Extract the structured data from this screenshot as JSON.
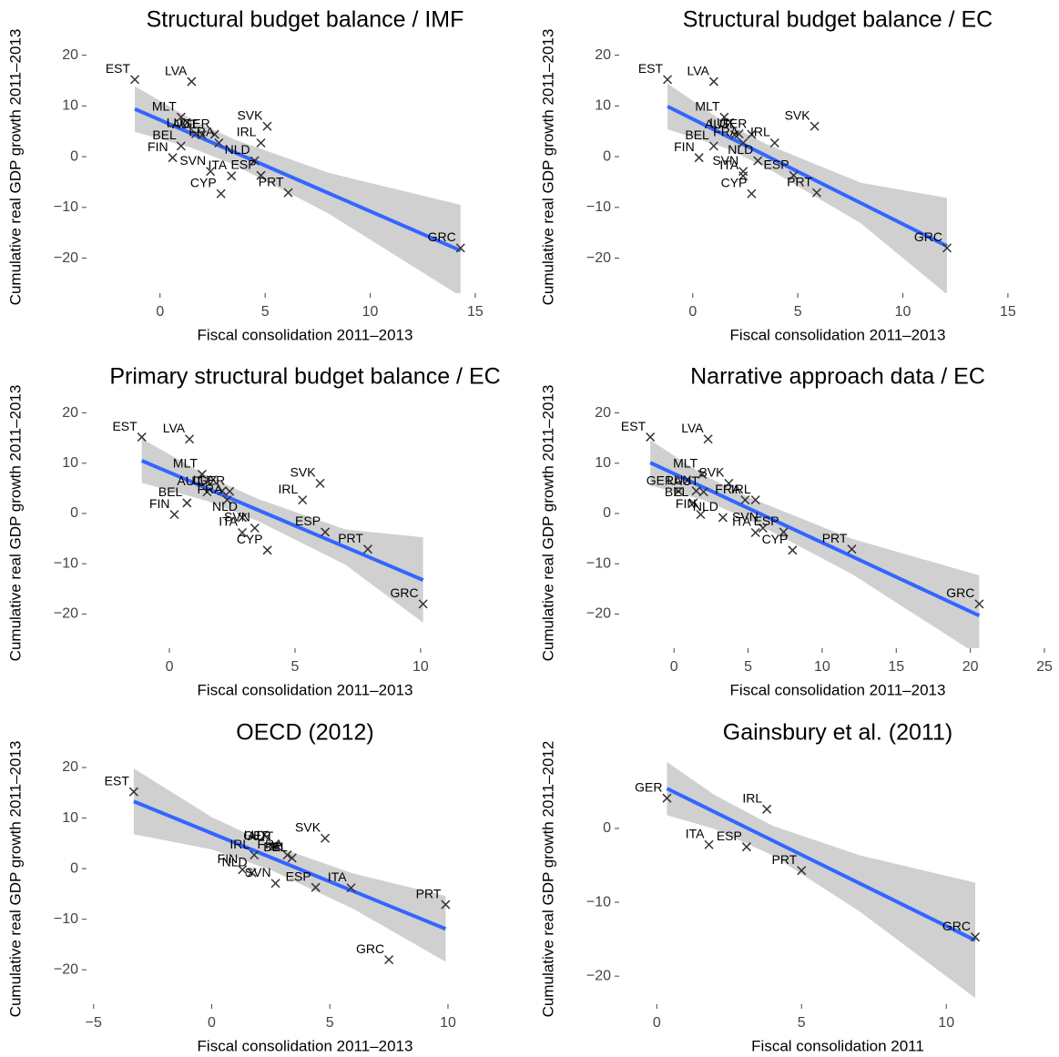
{
  "chart_data": [
    {
      "type": "scatter",
      "title": "Structural budget balance / IMF",
      "x_label": "Fiscal consolidation 2011–2013",
      "y_label": "Cumulative real GDP growth 2011–2013",
      "xlim": [
        -3.5,
        17.3
      ],
      "ylim": [
        -26.9,
        22.8
      ],
      "xticks": [
        0,
        5,
        10,
        15
      ],
      "yticks": [
        {
          "value": -20,
          "label": "−20"
        },
        {
          "value": -10,
          "label": "−10"
        },
        0,
        10,
        20
      ],
      "labels": [
        "EST",
        "LVA",
        "MLT",
        "LUX",
        "GER",
        "SVK",
        "IRL",
        "BEL",
        "FIN",
        "AUT",
        "FRA",
        "NLD",
        "SVN",
        "ITA",
        "CYP",
        "ESP",
        "PRT",
        "GRC"
      ],
      "x": [
        -1.2,
        1.5,
        1.0,
        1.7,
        2.6,
        5.1,
        4.8,
        1.0,
        0.6,
        2.0,
        2.8,
        4.5,
        2.4,
        3.4,
        2.9,
        4.8,
        6.1,
        14.3
      ],
      "y": [
        15.2,
        14.8,
        7.8,
        4.5,
        4.4,
        6.0,
        2.7,
        2.1,
        -0.2,
        4.3,
        2.7,
        -0.8,
        -2.9,
        -3.8,
        -7.3,
        -3.7,
        -7.1,
        -18.0
      ],
      "fit": {
        "x": [
          -1.2,
          1.5,
          3.5,
          8,
          14.3
        ],
        "y": [
          9.4,
          4.54,
          0.94,
          -7.16,
          -18.5
        ],
        "lower": [
          4.9,
          1.74,
          -1.56,
          -11.16,
          -27.5
        ],
        "upper": [
          13.9,
          7.34,
          3.44,
          -3.16,
          -9.5
        ]
      },
      "color": "#333333",
      "fit_color": "#3366ff",
      "band_color": "#c8c8c8"
    },
    {
      "type": "scatter",
      "title": "Structural budget balance / EC",
      "x_label": "Fiscal consolidation 2011–2013",
      "y_label": "Cumulative real GDP growth 2011–2013",
      "xlim": [
        -3.5,
        17.3
      ],
      "ylim": [
        -26.9,
        22.8
      ],
      "xticks": [
        0,
        5,
        10,
        15
      ],
      "yticks": [
        {
          "value": -20,
          "label": "−20"
        },
        {
          "value": -10,
          "label": "−10"
        },
        0,
        10,
        20
      ],
      "labels": [
        "EST",
        "LVA",
        "MLT",
        "LUX",
        "GER",
        "SVK",
        "IRL",
        "BEL",
        "FIN",
        "AUT",
        "FRA",
        "NLD",
        "SVN",
        "ITA",
        "CYP",
        "ESP",
        "PRT",
        "GRC"
      ],
      "x": [
        -1.2,
        1.0,
        1.5,
        2.2,
        2.8,
        5.8,
        3.9,
        1.0,
        0.3,
        2.0,
        2.4,
        3.1,
        2.4,
        2.4,
        2.8,
        4.8,
        5.9,
        12.1
      ],
      "y": [
        15.2,
        14.8,
        7.8,
        4.5,
        4.4,
        6.0,
        2.7,
        2.1,
        -0.2,
        4.3,
        2.7,
        -0.8,
        -2.9,
        -3.8,
        -7.3,
        -3.7,
        -7.1,
        -18.0
      ],
      "fit": {
        "x": [
          -1.2,
          1.5,
          3.5,
          8,
          12.1
        ],
        "y": [
          9.9,
          4.31,
          0.17,
          -9.14,
          -17.63
        ],
        "lower": [
          5.4,
          1.81,
          -2.13,
          -13.14,
          -27.13
        ],
        "upper": [
          14.4,
          6.81,
          2.47,
          -5.14,
          -8.13
        ]
      },
      "color": "#333333",
      "fit_color": "#3366ff",
      "band_color": "#c8c8c8"
    },
    {
      "type": "scatter",
      "title": "Primary structural budget balance / EC",
      "x_label": "Fiscal consolidation 2011–2013",
      "y_label": "Cumulative real GDP growth 2011–2013",
      "xlim": [
        -3.3,
        14.1
      ],
      "ylim": [
        -26.8,
        23
      ],
      "xticks": [
        0,
        5,
        10
      ],
      "yticks": [
        {
          "value": -20,
          "label": "−20"
        },
        {
          "value": -10,
          "label": "−10"
        },
        0,
        10,
        20
      ],
      "labels": [
        "EST",
        "LVA",
        "MLT",
        "LUX",
        "GER",
        "SVK",
        "IRL",
        "BEL",
        "FIN",
        "AUT",
        "FRA",
        "NLD",
        "SVN",
        "ITA",
        "CYP",
        "ESP",
        "PRT",
        "GRC"
      ],
      "x": [
        -1.1,
        0.8,
        1.3,
        2.1,
        2.4,
        6.0,
        5.3,
        0.7,
        0.2,
        1.5,
        2.3,
        2.9,
        3.4,
        2.9,
        3.9,
        6.2,
        7.9,
        10.1
      ],
      "y": [
        15.2,
        14.8,
        7.8,
        4.5,
        4.4,
        6.0,
        2.7,
        2.1,
        -0.2,
        4.3,
        2.7,
        -0.8,
        -2.9,
        -3.8,
        -7.3,
        -3.7,
        -7.1,
        -18.0
      ],
      "fit": {
        "x": [
          -1.1,
          1.5,
          3.5,
          7,
          10.1
        ],
        "y": [
          10.5,
          4.99,
          0.75,
          -6.67,
          -13.24
        ],
        "lower": [
          6.1,
          2.49,
          -1.45,
          -10.17,
          -21.74
        ],
        "upper": [
          14.9,
          7.49,
          2.95,
          -3.17,
          -4.74
        ]
      },
      "color": "#333333",
      "fit_color": "#3366ff",
      "band_color": "#c8c8c8"
    },
    {
      "type": "scatter",
      "title": "Narrative approach data / EC",
      "x_label": "Fiscal consolidation 2011–2013",
      "y_label": "Cumulative real GDP growth 2011–2013",
      "xlim": [
        -3.7,
        25.8
      ],
      "ylim": [
        -26.8,
        23
      ],
      "xticks": [
        0,
        5,
        10,
        15,
        20,
        25
      ],
      "yticks": [
        {
          "value": -20,
          "label": "−20"
        },
        {
          "value": -10,
          "label": "−10"
        },
        0,
        10,
        20
      ],
      "labels": [
        "EST",
        "LVA",
        "MLT",
        "LUX",
        "GER",
        "SVK",
        "IRL",
        "BEL",
        "FIN",
        "AUT",
        "FRA",
        "NLD",
        "SVN",
        "ITA",
        "CYP",
        "ESP",
        "PRT",
        "GRC"
      ],
      "x": [
        -1.6,
        2.3,
        1.9,
        1.5,
        0.3,
        3.7,
        5.5,
        1.3,
        1.8,
        2.0,
        4.8,
        3.3,
        6.0,
        5.5,
        8.0,
        7.4,
        12.0,
        20.6
      ],
      "y": [
        15.2,
        14.8,
        7.8,
        4.5,
        4.4,
        6.0,
        2.7,
        2.1,
        -0.2,
        4.3,
        2.7,
        -0.8,
        -2.9,
        -3.8,
        -7.3,
        -3.7,
        -7.1,
        -18.0
      ],
      "fit": {
        "x": [
          -1.6,
          2,
          5,
          12,
          20.6
        ],
        "y": [
          10.1,
          5.17,
          1.06,
          -8.53,
          -20.31
        ],
        "lower": [
          5.6,
          2.67,
          -1.14,
          -12.03,
          -28.31
        ],
        "upper": [
          14.6,
          7.67,
          3.26,
          -5.03,
          -12.31
        ]
      },
      "color": "#333333",
      "fit_color": "#3366ff",
      "band_color": "#c8c8c8"
    },
    {
      "type": "scatter",
      "title": "OECD (2012)",
      "x_label": "Fiscal consolidation 2011–2013",
      "y_label": "Cumulative real GDP growth 2011–2013",
      "xlim": [
        -5.3,
        13.2
      ],
      "ylim": [
        -26.8,
        22.7
      ],
      "xticks": [
        {
          "value": -5,
          "label": "−5"
        },
        0,
        5,
        10
      ],
      "yticks": [
        {
          "value": -20,
          "label": "−20"
        },
        {
          "value": -10,
          "label": "−10"
        },
        0,
        10,
        20
      ],
      "labels": [
        "EST",
        "LUX",
        "GER",
        "AUT",
        "SVK",
        "FRA",
        "IRL",
        "BEL",
        "NLD",
        "FIN",
        "SVN",
        "ESP",
        "ITA",
        "PRT",
        "GRC"
      ],
      "x": [
        -3.3,
        2.6,
        2.7,
        2.8,
        4.8,
        3.2,
        1.8,
        3.4,
        1.7,
        1.3,
        2.7,
        4.4,
        5.9,
        9.9,
        7.5
      ],
      "y": [
        15.2,
        4.5,
        4.4,
        4.3,
        6.0,
        2.7,
        2.7,
        2.1,
        -0.8,
        -0.2,
        -2.9,
        -3.7,
        -3.8,
        -7.1,
        -18.0
      ],
      "fit": {
        "x": [
          -3.3,
          0,
          2.5,
          6,
          9.9
        ],
        "y": [
          13.3,
          6.99,
          2.22,
          -4.47,
          -11.91
        ],
        "lower": [
          6.8,
          3.79,
          -0.28,
          -7.97,
          -18.41
        ],
        "upper": [
          19.8,
          10.19,
          4.72,
          -0.97,
          -5.41
        ]
      },
      "color": "#333333",
      "fit_color": "#3366ff",
      "band_color": "#c8c8c8"
    },
    {
      "type": "scatter",
      "title": "Gainsbury et al. (2011)",
      "x_label": "Fiscal consolidation 2011",
      "y_label": "Cumulative real GDP growth 2011–2012",
      "xlim": [
        -1.3,
        13.8
      ],
      "ylim": [
        -23.8,
        10.1
      ],
      "xticks": [
        0,
        5,
        10
      ],
      "yticks": [
        {
          "value": -20,
          "label": "−20"
        },
        {
          "value": -10,
          "label": "−10"
        },
        0
      ],
      "labels": [
        "GER",
        "IRL",
        "ITA",
        "ESP",
        "PRT",
        "GRC"
      ],
      "x": [
        0.35,
        3.8,
        1.8,
        3.1,
        5.0,
        11.0
      ],
      "y": [
        4.1,
        2.6,
        -2.2,
        -2.5,
        -5.7,
        -14.7
      ],
      "fit": {
        "x": [
          0.35,
          2,
          4,
          7,
          11
        ],
        "y": [
          5.4,
          2.22,
          -1.64,
          -7.43,
          -15.15
        ],
        "lower": [
          1.8,
          -0.08,
          -3.64,
          -11.23,
          -22.95
        ],
        "upper": [
          9,
          4.52,
          0.36,
          -3.63,
          -7.35
        ]
      },
      "color": "#333333",
      "fit_color": "#3366ff",
      "band_color": "#c8c8c8"
    }
  ]
}
